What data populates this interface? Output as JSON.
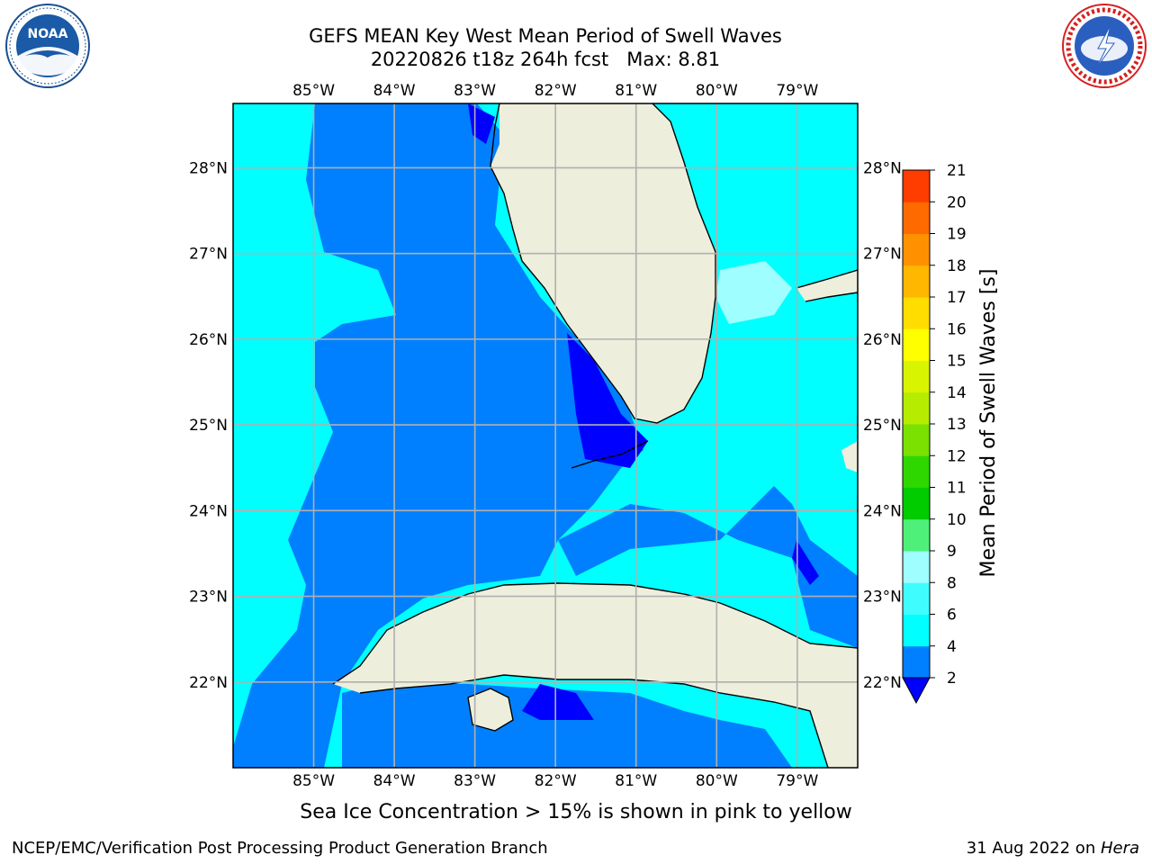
{
  "header": {
    "title_line1": "GEFS MEAN Key West Mean Period of Swell Waves",
    "title_line2": "20220826 t18z 264h fcst   Max: 8.81"
  },
  "logos": {
    "left": {
      "name": "noaa-logo",
      "text": "NOAA",
      "ring_text": "NATIONAL OCEANIC AND ATMOSPHERIC ADMINISTRATION · U.S. DEPARTMENT OF COMMERCE"
    },
    "right": {
      "name": "nws-logo",
      "ring_text": "NATIONAL WEATHER SERVICE"
    }
  },
  "map": {
    "lon_labels": [
      "85°W",
      "84°W",
      "83°W",
      "82°W",
      "81°W",
      "80°W",
      "79°W"
    ],
    "lat_labels": [
      "28°N",
      "27°N",
      "26°N",
      "25°N",
      "24°N",
      "23°N",
      "22°N"
    ],
    "lon_range": [
      -86.0,
      -78.25
    ],
    "lat_range": [
      21.0,
      28.75
    ],
    "colors": {
      "land": "#eeeedc",
      "water_2_4": "#0080ff",
      "water_4_6": "#00ffff",
      "water_lt2": "#0000ff",
      "water_8_9": "#9ffeff",
      "gridline": "#b0b0b0"
    }
  },
  "colorbar": {
    "label": "Mean Period of Swell Waves [s]",
    "ticks": [
      "2",
      "4",
      "6",
      "8",
      "9",
      "10",
      "11",
      "12",
      "13",
      "14",
      "15",
      "16",
      "17",
      "18",
      "19",
      "20",
      "21"
    ],
    "colors": [
      "#0080ff",
      "#00ffff",
      "#3ffdff",
      "#9ffeff",
      "#4ef07a",
      "#00cc00",
      "#2fd700",
      "#7be100",
      "#b6ec00",
      "#d9f400",
      "#ffff00",
      "#ffdd00",
      "#ffb700",
      "#ff9100",
      "#ff6a00",
      "#ff3d00",
      "#ff0000"
    ],
    "under_color": "#0000ff"
  },
  "caption": "Sea Ice Concentration > 15% is shown in pink to yellow",
  "footer": {
    "left": "NCEP/EMC/Verification Post Processing Product Generation Branch",
    "right_prefix": "31 Aug 2022 on ",
    "right_host": "Hera"
  }
}
